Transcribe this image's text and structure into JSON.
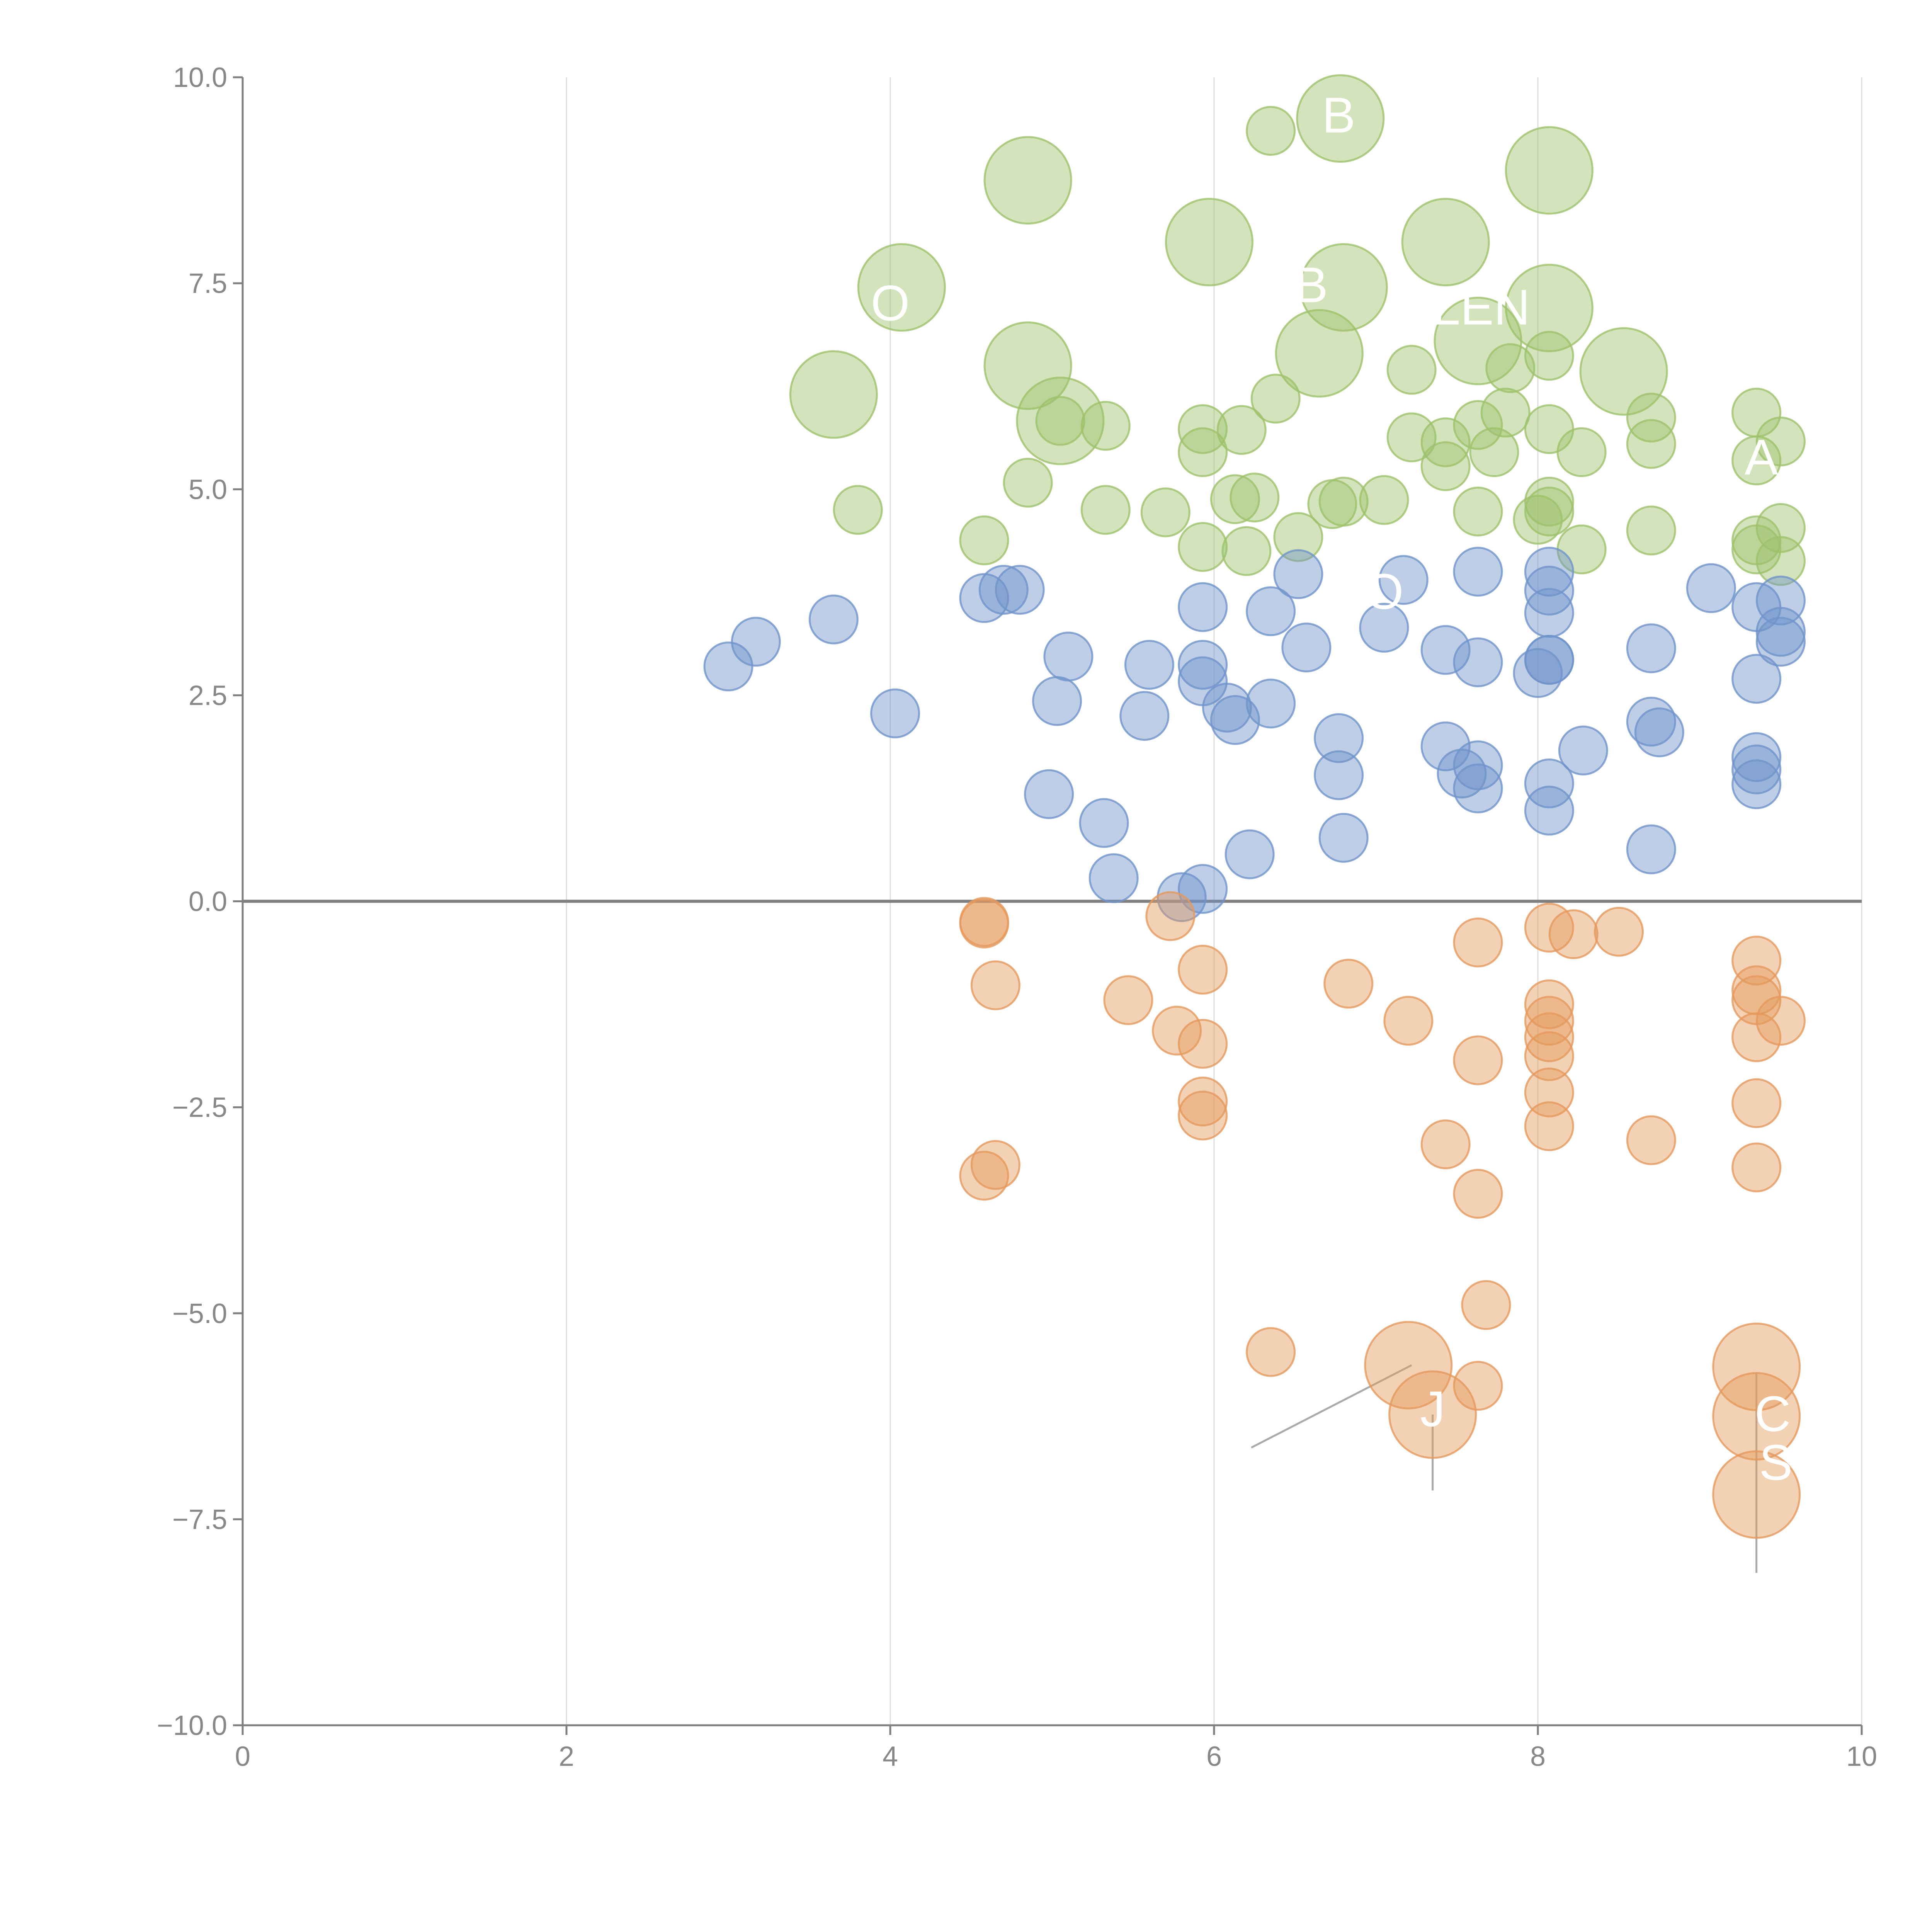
{
  "chart_data": {
    "type": "scatter",
    "title": "",
    "xlabel": "",
    "ylabel": "",
    "xlim": [
      0,
      10
    ],
    "ylim": [
      -10,
      10
    ],
    "x_ticks": [
      0,
      2,
      4,
      6,
      8,
      10
    ],
    "x_tick_labels": [
      "0",
      "2",
      "4",
      "6",
      "8",
      "10"
    ],
    "y_ticks": [
      10,
      7.5,
      5,
      2.5,
      0,
      -2.5,
      -5,
      -7.5,
      -10
    ],
    "y_tick_labels": [
      "10.0",
      "7.5",
      "5.0",
      "2.5",
      "0.0",
      "−2.5",
      "−5.0",
      "−7.5",
      "−10.0"
    ],
    "grid": "vertical",
    "zero_line": true,
    "series": [
      {
        "name": "green",
        "color": "#9dc26a",
        "points": [
          [
            6.35,
            9.35,
            1
          ],
          [
            6.78,
            9.5,
            3
          ],
          [
            4.85,
            8.75,
            3
          ],
          [
            8.07,
            8.87,
            3
          ],
          [
            5.97,
            8.0,
            3
          ],
          [
            7.43,
            8.0,
            3
          ],
          [
            4.07,
            7.45,
            3
          ],
          [
            6.8,
            7.45,
            3
          ],
          [
            8.07,
            7.2,
            3
          ],
          [
            7.63,
            6.8,
            3
          ],
          [
            4.85,
            6.5,
            3
          ],
          [
            6.65,
            6.65,
            3
          ],
          [
            3.65,
            6.15,
            3
          ],
          [
            8.53,
            6.43,
            3
          ],
          [
            5.05,
            5.83,
            3
          ],
          [
            5.05,
            5.83,
            1
          ],
          [
            5.33,
            5.77,
            1
          ],
          [
            5.93,
            5.73,
            1
          ],
          [
            6.17,
            5.72,
            1
          ],
          [
            6.38,
            6.1,
            1
          ],
          [
            7.22,
            6.45,
            1
          ],
          [
            7.83,
            6.47,
            1
          ],
          [
            8.07,
            6.62,
            1
          ],
          [
            7.8,
            5.93,
            1
          ],
          [
            7.63,
            5.78,
            1
          ],
          [
            7.43,
            5.57,
            1
          ],
          [
            7.73,
            5.45,
            1
          ],
          [
            7.22,
            5.63,
            1
          ],
          [
            7.43,
            5.28,
            1
          ],
          [
            8.07,
            5.73,
            1
          ],
          [
            8.27,
            5.45,
            1
          ],
          [
            8.7,
            5.87,
            1
          ],
          [
            8.7,
            5.55,
            1
          ],
          [
            9.35,
            5.93,
            1
          ],
          [
            9.5,
            5.58,
            1
          ],
          [
            9.35,
            5.35,
            1
          ],
          [
            5.93,
            5.45,
            1
          ],
          [
            4.85,
            5.08,
            1
          ],
          [
            3.8,
            4.75,
            1
          ],
          [
            5.33,
            4.75,
            1
          ],
          [
            5.7,
            4.72,
            1
          ],
          [
            6.13,
            4.88,
            1
          ],
          [
            6.25,
            4.9,
            1
          ],
          [
            6.73,
            4.82,
            1
          ],
          [
            6.8,
            4.85,
            1
          ],
          [
            7.05,
            4.87,
            1
          ],
          [
            7.63,
            4.73,
            1
          ],
          [
            8.07,
            4.85,
            1
          ],
          [
            8.07,
            4.73,
            1
          ],
          [
            8.0,
            4.63,
            1
          ],
          [
            9.5,
            4.53,
            1
          ],
          [
            8.7,
            4.5,
            1
          ],
          [
            4.58,
            4.38,
            1
          ],
          [
            5.93,
            4.3,
            1
          ],
          [
            6.2,
            4.25,
            1
          ],
          [
            6.52,
            4.42,
            1
          ],
          [
            8.27,
            4.27,
            1
          ],
          [
            9.35,
            4.38,
            1
          ],
          [
            9.35,
            4.27,
            1
          ],
          [
            9.5,
            4.13,
            1
          ]
        ]
      },
      {
        "name": "blue",
        "color": "#6f93ca",
        "points": [
          [
            3.0,
            2.85,
            1
          ],
          [
            3.17,
            3.15,
            1
          ],
          [
            3.65,
            3.42,
            1
          ],
          [
            4.03,
            2.28,
            1
          ],
          [
            4.58,
            3.68,
            1
          ],
          [
            4.7,
            3.78,
            1
          ],
          [
            4.8,
            3.78,
            1
          ],
          [
            5.1,
            2.97,
            1
          ],
          [
            5.03,
            2.43,
            1
          ],
          [
            4.98,
            1.3,
            1
          ],
          [
            5.32,
            0.95,
            1
          ],
          [
            5.38,
            0.28,
            1
          ],
          [
            5.57,
            2.25,
            1
          ],
          [
            5.6,
            2.87,
            1
          ],
          [
            5.93,
            3.57,
            1
          ],
          [
            5.93,
            2.87,
            1
          ],
          [
            5.93,
            2.67,
            1
          ],
          [
            6.08,
            2.35,
            1
          ],
          [
            6.13,
            2.2,
            1
          ],
          [
            6.35,
            3.52,
            1
          ],
          [
            6.35,
            2.4,
            1
          ],
          [
            6.22,
            0.57,
            1
          ],
          [
            5.8,
            0.05,
            1
          ],
          [
            5.93,
            0.15,
            1
          ],
          [
            6.52,
            3.97,
            1
          ],
          [
            6.57,
            3.08,
            1
          ],
          [
            6.77,
            1.98,
            1
          ],
          [
            6.77,
            1.53,
            1
          ],
          [
            6.8,
            0.77,
            1
          ],
          [
            7.05,
            3.32,
            1
          ],
          [
            7.17,
            3.9,
            1
          ],
          [
            7.43,
            3.05,
            1
          ],
          [
            7.43,
            1.88,
            1
          ],
          [
            7.53,
            1.55,
            1
          ],
          [
            7.63,
            1.65,
            1
          ],
          [
            7.63,
            1.37,
            1
          ],
          [
            7.63,
            4.0,
            1
          ],
          [
            7.63,
            2.9,
            1
          ],
          [
            8.07,
            4.0,
            1
          ],
          [
            8.07,
            3.77,
            1
          ],
          [
            8.07,
            3.5,
            1
          ],
          [
            8.07,
            2.93,
            1
          ],
          [
            8.07,
            2.93,
            1
          ],
          [
            8.0,
            2.77,
            1
          ],
          [
            8.07,
            1.43,
            1
          ],
          [
            8.07,
            1.1,
            1
          ],
          [
            8.28,
            1.83,
            1
          ],
          [
            8.7,
            3.07,
            1
          ],
          [
            8.7,
            2.18,
            1
          ],
          [
            8.75,
            2.05,
            1
          ],
          [
            8.7,
            0.63,
            1
          ],
          [
            9.07,
            3.8,
            1
          ],
          [
            9.35,
            3.57,
            1
          ],
          [
            9.35,
            2.7,
            1
          ],
          [
            9.35,
            1.75,
            1
          ],
          [
            9.35,
            1.6,
            1
          ],
          [
            9.35,
            1.42,
            1
          ],
          [
            9.5,
            3.65,
            1
          ],
          [
            9.5,
            3.27,
            1
          ],
          [
            9.5,
            3.15,
            1
          ]
        ]
      },
      {
        "name": "orange",
        "color": "#e5995c",
        "points": [
          [
            4.58,
            -0.27,
            1
          ],
          [
            4.58,
            -0.25,
            1
          ],
          [
            4.65,
            -1.02,
            1
          ],
          [
            4.58,
            -3.33,
            1
          ],
          [
            4.65,
            -3.2,
            1
          ],
          [
            5.47,
            -1.2,
            1
          ],
          [
            5.73,
            -0.18,
            1
          ],
          [
            5.77,
            -1.57,
            1
          ],
          [
            5.93,
            -0.83,
            1
          ],
          [
            5.93,
            -1.73,
            1
          ],
          [
            5.93,
            -2.43,
            1
          ],
          [
            5.93,
            -2.6,
            1
          ],
          [
            6.35,
            -5.47,
            1
          ],
          [
            6.83,
            -1.0,
            1
          ],
          [
            7.2,
            -1.45,
            1
          ],
          [
            7.43,
            -2.95,
            1
          ],
          [
            7.63,
            -0.5,
            1
          ],
          [
            7.63,
            -1.93,
            1
          ],
          [
            7.63,
            -3.55,
            1
          ],
          [
            7.68,
            -4.9,
            1
          ],
          [
            7.63,
            -5.88,
            1
          ],
          [
            8.07,
            -0.32,
            1
          ],
          [
            8.07,
            -1.25,
            1
          ],
          [
            8.07,
            -1.45,
            1
          ],
          [
            8.07,
            -1.65,
            1
          ],
          [
            8.07,
            -1.88,
            1
          ],
          [
            8.07,
            -2.32,
            1
          ],
          [
            8.07,
            -2.73,
            1
          ],
          [
            8.22,
            -0.4,
            1
          ],
          [
            8.5,
            -0.37,
            1
          ],
          [
            8.7,
            -2.9,
            1
          ],
          [
            9.35,
            -0.72,
            1
          ],
          [
            9.35,
            -1.08,
            1
          ],
          [
            9.35,
            -1.2,
            1
          ],
          [
            9.35,
            -1.65,
            1
          ],
          [
            9.35,
            -2.45,
            1
          ],
          [
            9.35,
            -3.23,
            1
          ],
          [
            9.5,
            -1.45,
            1
          ],
          [
            7.2,
            -5.63,
            3
          ],
          [
            7.35,
            -6.23,
            3
          ],
          [
            9.35,
            -5.65,
            3
          ],
          [
            9.35,
            -6.25,
            3
          ],
          [
            9.35,
            -7.2,
            3
          ]
        ]
      }
    ],
    "annotations": [
      {
        "text": "J",
        "x": 7.35,
        "y": -6.37
      },
      {
        "text": "C",
        "x": 9.45,
        "y": -6.43
      },
      {
        "text": "S",
        "x": 9.47,
        "y": -7.02
      },
      {
        "text": "B",
        "x": 6.77,
        "y": 9.33
      },
      {
        "text": "B",
        "x": 6.6,
        "y": 7.27
      },
      {
        "text": "LEN",
        "x": 7.65,
        "y": 7.0
      },
      {
        "text": "A",
        "x": 9.38,
        "y": 5.18
      },
      {
        "text": "O",
        "x": 4.0,
        "y": 7.05
      },
      {
        "text": "O",
        "x": 7.05,
        "y": 3.55
      }
    ],
    "leader_lines": [
      {
        "from": [
          7.22,
          -5.63
        ],
        "to": [
          6.23,
          -6.63
        ]
      },
      {
        "from": [
          7.35,
          -6.23
        ],
        "to": [
          7.35,
          -7.15
        ]
      },
      {
        "from": [
          9.35,
          -5.72
        ],
        "to": [
          9.35,
          -8.15
        ]
      }
    ]
  }
}
